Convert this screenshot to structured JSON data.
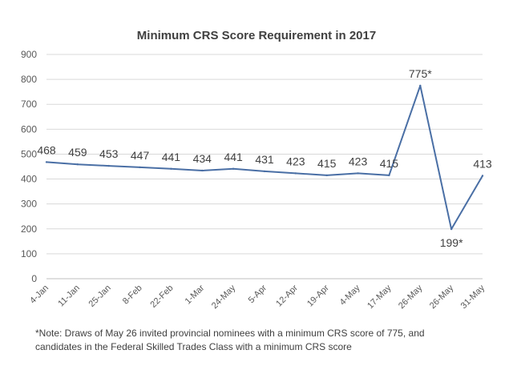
{
  "chart_data": {
    "type": "line",
    "title": "Minimum CRS Score Requirement in 2017",
    "xlabel": "",
    "ylabel": "",
    "categories": [
      "4-Jan",
      "11-Jan",
      "25-Jan",
      "8-Feb",
      "22-Feb",
      "1-Mar",
      "24-May",
      "5-Apr",
      "12-Apr",
      "19-Apr",
      "4-May",
      "17-May",
      "26-May",
      "26-May",
      "31-May"
    ],
    "series": [
      {
        "values": [
          468,
          459,
          453,
          447,
          441,
          434,
          441,
          431,
          423,
          415,
          423,
          415,
          775,
          199,
          413
        ],
        "labels": [
          "468",
          "459",
          "453",
          "447",
          "441",
          "434",
          "441",
          "431",
          "423",
          "415",
          "423",
          "415",
          "775*",
          "199*",
          "413"
        ]
      }
    ],
    "ylim": [
      0,
      900
    ],
    "yticks": [
      0,
      100,
      200,
      300,
      400,
      500,
      600,
      700,
      800,
      900
    ],
    "grid": true,
    "legend": "none",
    "line_color": "#4a6fa5"
  },
  "note": {
    "line1": "*Note: Draws of May 26 invited provincial nominees with a minimum CRS score of 775, and",
    "line2": "candidates in the Federal Skilled Trades Class with a minimum CRS score"
  }
}
